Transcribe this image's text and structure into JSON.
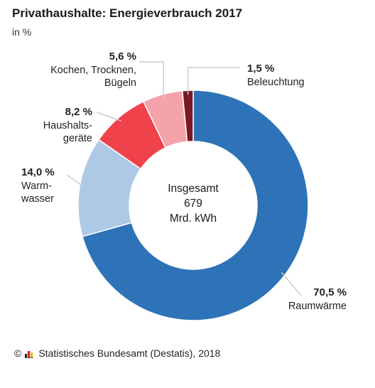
{
  "chart_data": {
    "type": "pie",
    "variant": "donut",
    "title": "Privathaushalte: Energieverbrauch 2017",
    "subtitle": "in %",
    "center_text": [
      "Insgesamt",
      "679",
      "Mrd. kWh"
    ],
    "slices": [
      {
        "value": 70.5,
        "value_label": "70,5 %",
        "label_lines": [
          "Raumwärme"
        ],
        "color": "#2e72b8"
      },
      {
        "value": 14.0,
        "value_label": "14,0 %",
        "label_lines": [
          "Warm-",
          "wasser"
        ],
        "color": "#adc9e6"
      },
      {
        "value": 8.2,
        "value_label": "8,2 %",
        "label_lines": [
          "Haushalts-",
          "geräte"
        ],
        "color": "#f0424a"
      },
      {
        "value": 5.6,
        "value_label": "5,6 %",
        "label_lines": [
          "Kochen, Trocknen,",
          "Bügeln"
        ],
        "color": "#f5a3ab"
      },
      {
        "value": 1.5,
        "value_label": "1,5 %",
        "label_lines": [
          "Beleuchtung"
        ],
        "color": "#7a1a24"
      }
    ]
  },
  "footer": {
    "copyright_symbol": "©",
    "logo_icon": "destatis-logo-icon",
    "source": "Statistisches Bundesamt (Destatis), 2018"
  }
}
